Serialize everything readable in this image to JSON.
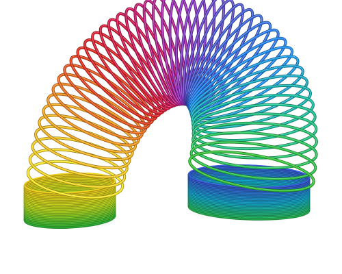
{
  "image": {
    "subject": "",
    "background_color": "#ffffff",
    "colors": [
      "#fbe92a",
      "#f7a21d",
      "#e5261e",
      "#d4145a",
      "#9b30c8",
      "#4a5ad6",
      "#1e90ff",
      "#18c8a0",
      "#36c93a"
    ]
  }
}
